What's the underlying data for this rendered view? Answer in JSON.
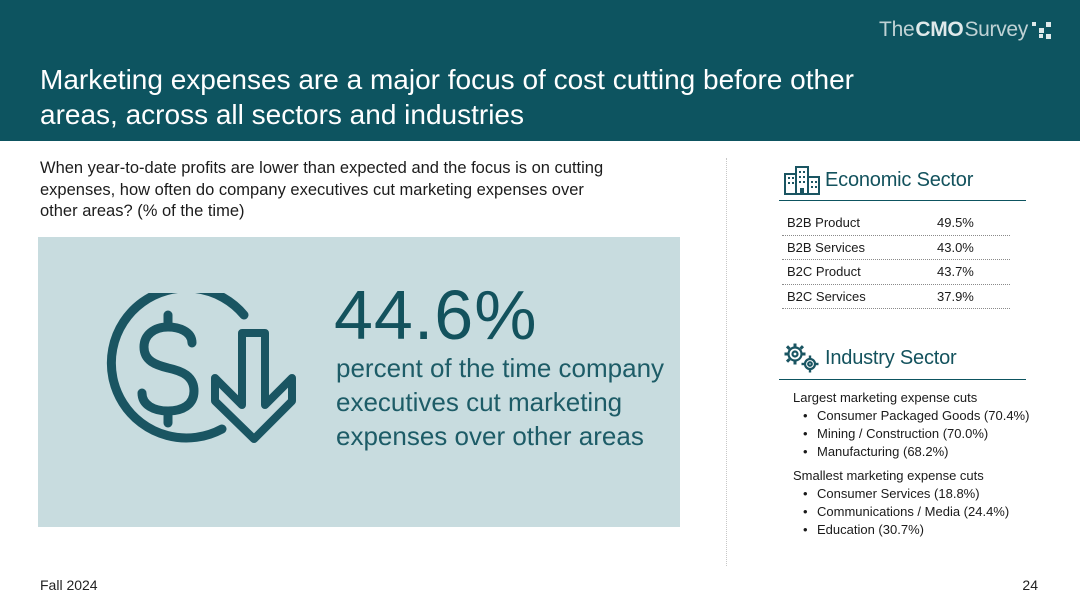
{
  "header": {
    "title": "Marketing expenses are a major focus of cost cutting before other areas, across all sectors and industries",
    "brand": {
      "part1": "The ",
      "part2": "CMO",
      "part3": " Survey"
    },
    "background_color": "#0d5460"
  },
  "question": "When year-to-date profits are lower than expected and the focus is on cutting expenses, how often do company executives cut marketing expenses over other areas? (% of the time)",
  "highlight": {
    "value": "44.6%",
    "description": "percent of the time company executives cut marketing expenses over other areas",
    "icon": "dollar-down-arrow-icon",
    "panel_color": "#c8dcdf"
  },
  "chart_data": {
    "type": "table",
    "title": "Economic Sector",
    "rows": [
      {
        "label": "B2B Product",
        "value": "49.5%"
      },
      {
        "label": "B2B Services",
        "value": "43.0%"
      },
      {
        "label": "B2C Product",
        "value": "43.7%"
      },
      {
        "label": "B2C Services",
        "value": "37.9%"
      }
    ]
  },
  "economic": {
    "heading": "Economic Sector",
    "icon": "buildings-icon"
  },
  "industry": {
    "heading": "Industry Sector",
    "icon": "gears-icon",
    "largest_label": "Largest marketing expense cuts",
    "largest": [
      "Consumer Packaged Goods (70.4%)",
      "Mining / Construction (70.0%)",
      "Manufacturing (68.2%)"
    ],
    "smallest_label": "Smallest marketing expense cuts",
    "smallest": [
      "Consumer Services (18.8%)",
      "Communications / Media (24.4%)",
      "Education (30.7%)"
    ]
  },
  "footer": {
    "date": "Fall 2024",
    "page": "24"
  }
}
